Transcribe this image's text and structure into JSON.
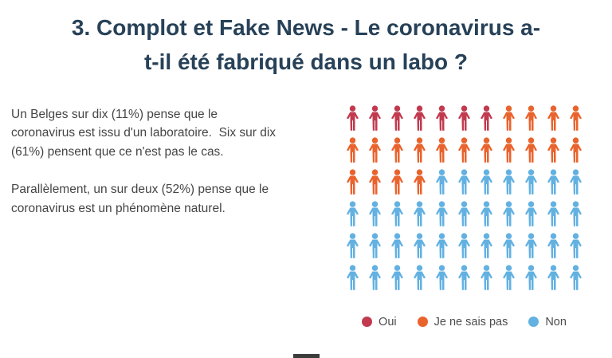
{
  "title": {
    "line1": "3. Complot et Fake News - Le coronavirus a-",
    "line2": "t-il été fabriqué dans un labo ?"
  },
  "description": {
    "paragraph1": "Un Belges sur dix (11%) pense que le coronavirus est issu d'un laboratoire.  Six sur dix (61%) pensent que ce n'est pas le cas.",
    "paragraph2": "Parallèlement, un sur deux (52%) pense que le coronavirus est un phénomène naturel."
  },
  "chart_data": {
    "type": "pictogram",
    "unit": "person-icon",
    "grid": {
      "rows": 6,
      "columns": 11,
      "total_icons": 66
    },
    "series": [
      {
        "name": "Oui",
        "icons": 7,
        "percent": 11,
        "color": "#c13a4f"
      },
      {
        "name": "Je ne sais pas",
        "icons": 19,
        "percent": 28,
        "color": "#e9632d"
      },
      {
        "name": "Non",
        "icons": 40,
        "percent": 61,
        "color": "#62b1e1"
      }
    ],
    "legend": [
      {
        "label": "Oui",
        "color": "#c13a4f"
      },
      {
        "label": "Je ne sais pas",
        "color": "#e9632d"
      },
      {
        "label": "Non",
        "color": "#62b1e1"
      }
    ],
    "legend_position": "bottom-right"
  },
  "colors": {
    "title": "#274158",
    "body_text": "#454545",
    "background": "#ffffff"
  }
}
